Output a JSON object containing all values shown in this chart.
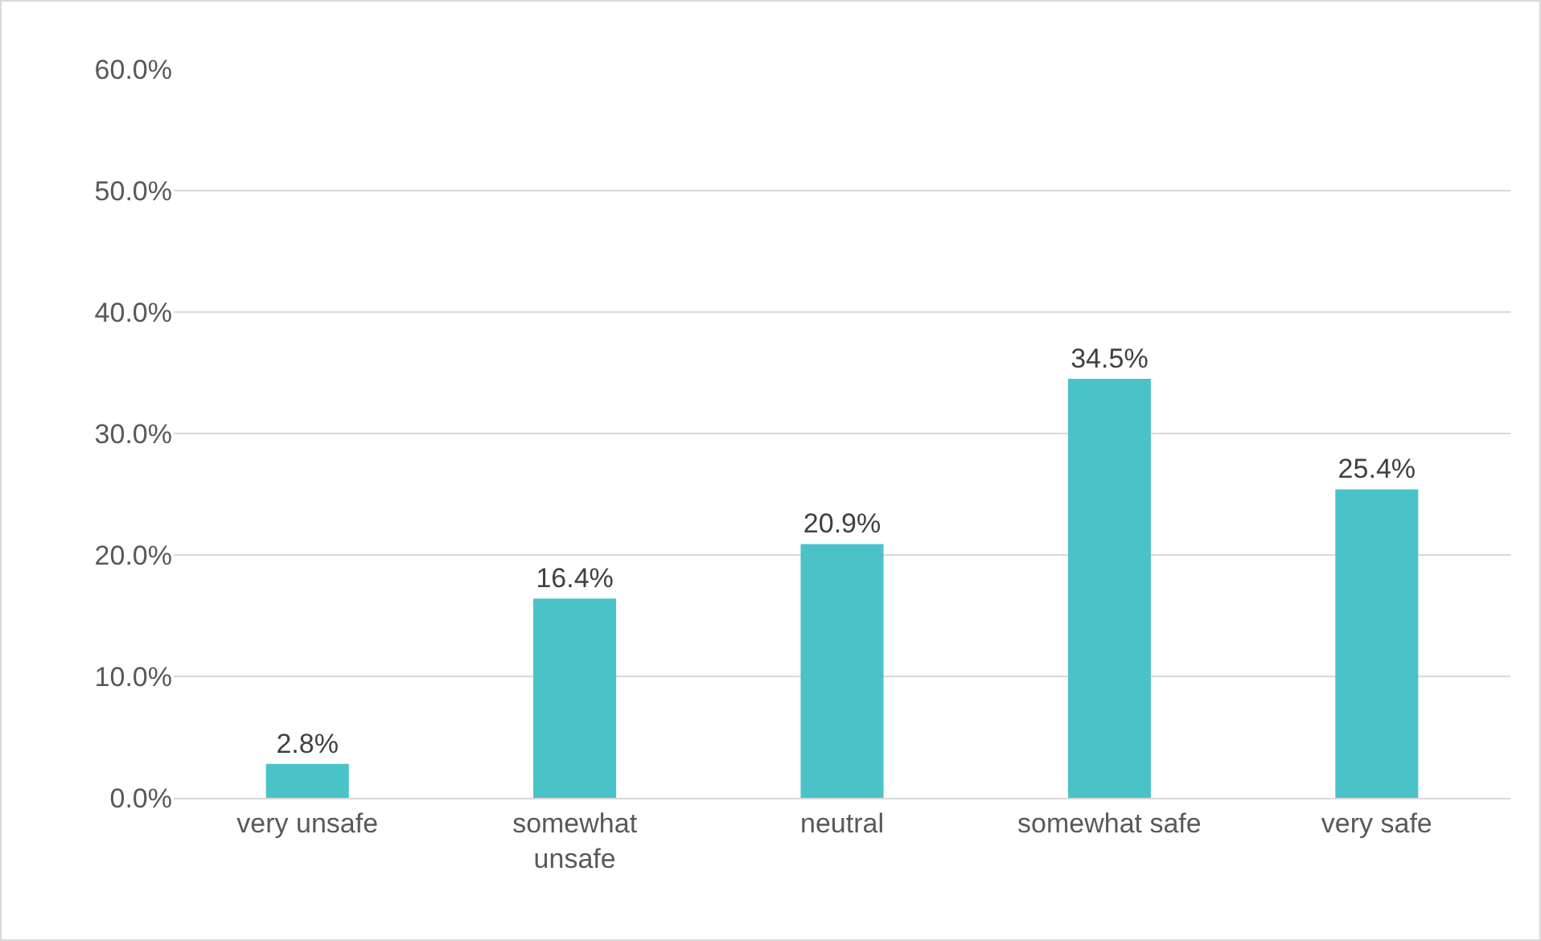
{
  "chart_data": {
    "type": "bar",
    "categories": [
      "very unsafe",
      "somewhat unsafe",
      "neutral",
      "somewhat safe",
      "very safe"
    ],
    "values": [
      2.8,
      16.4,
      20.9,
      34.5,
      25.4
    ],
    "value_labels": [
      "2.8%",
      "16.4%",
      "20.9%",
      "34.5%",
      "25.4%"
    ],
    "color": "#4ac3c8",
    "ylim": [
      0,
      60
    ],
    "yticks": [
      {
        "value": 0,
        "label": "0.0%"
      },
      {
        "value": 10,
        "label": "10.0%"
      },
      {
        "value": 20,
        "label": "20.0%"
      },
      {
        "value": 30,
        "label": "30.0%"
      },
      {
        "value": 40,
        "label": "40.0%"
      },
      {
        "value": 50,
        "label": "50.0%"
      },
      {
        "value": 60,
        "label": "60.0%"
      }
    ],
    "grid": "y"
  }
}
